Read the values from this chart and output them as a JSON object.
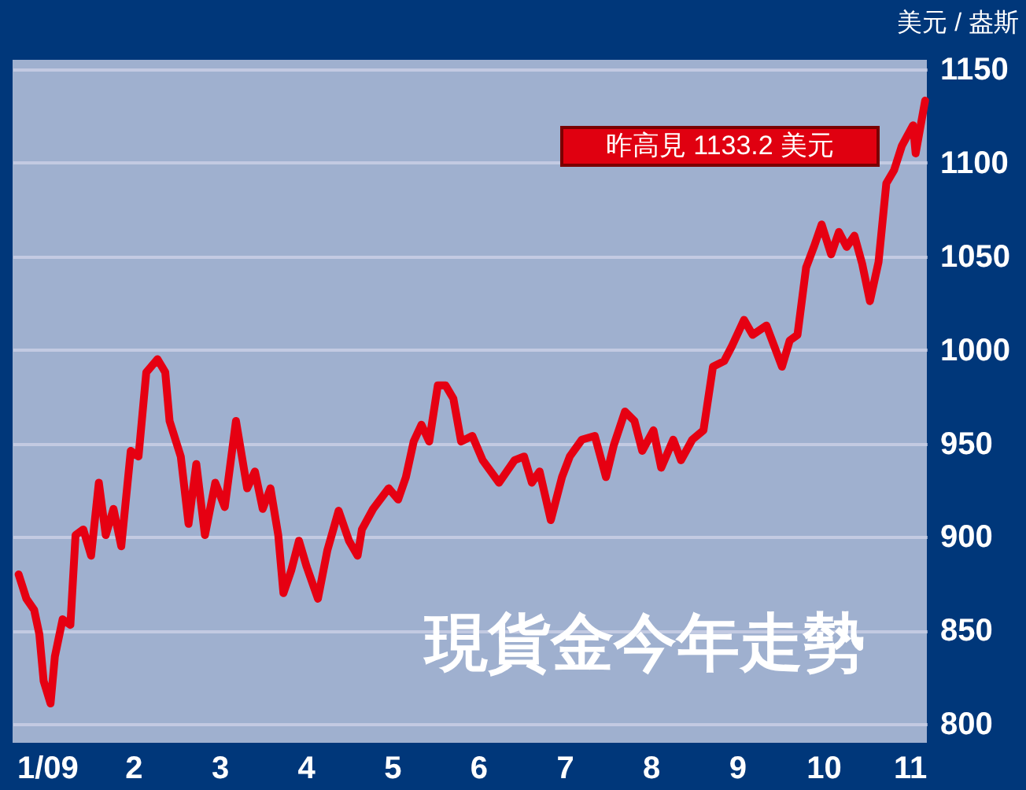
{
  "chart_data": {
    "type": "line",
    "title": "現貨金今年走勢",
    "ylabel": "美元 / 盎斯",
    "annotations": [
      "昨高見 1133.2 美元"
    ],
    "x": [
      0.67,
      0.76,
      0.85,
      0.91,
      0.96,
      1.04,
      1.09,
      1.18,
      1.27,
      1.33,
      1.42,
      1.51,
      1.6,
      1.68,
      1.77,
      1.86,
      1.97,
      2.06,
      2.15,
      2.28,
      2.37,
      2.42,
      2.55,
      2.64,
      2.73,
      2.83,
      2.95,
      3.06,
      3.19,
      3.32,
      3.41,
      3.5,
      3.59,
      3.68,
      3.74,
      3.83,
      3.92,
      4.01,
      4.14,
      4.25,
      4.38,
      4.5,
      4.6,
      4.65,
      4.78,
      4.96,
      5.07,
      5.16,
      5.25,
      5.34,
      5.43,
      5.53,
      5.62,
      5.71,
      5.8,
      5.93,
      6.05,
      6.24,
      6.42,
      6.53,
      6.62,
      6.71,
      6.84,
      6.97,
      7.06,
      7.2,
      7.35,
      7.48,
      7.57,
      7.7,
      7.81,
      7.9,
      8.03,
      8.12,
      8.26,
      8.35,
      8.48,
      8.61,
      8.72,
      8.85,
      8.94,
      9.08,
      9.18,
      9.34,
      9.43,
      9.52,
      9.61,
      9.7,
      9.8,
      9.89,
      9.98,
      10.09,
      10.18,
      10.27,
      10.36,
      10.45,
      10.54,
      10.64,
      10.73,
      10.82,
      10.91,
      11.04,
      11.07,
      11.18
    ],
    "series": [
      {
        "color": "#e60012",
        "values": [
          880,
          867,
          861,
          848,
          823,
          811,
          836,
          856,
          853,
          901,
          904,
          890,
          929,
          901,
          915,
          895,
          946,
          943,
          988,
          995,
          988,
          962,
          943,
          907,
          939,
          901,
          929,
          916,
          962,
          926,
          935,
          915,
          926,
          901,
          870,
          882,
          898,
          884,
          867,
          893,
          914,
          898,
          890,
          904,
          915,
          926,
          920,
          932,
          951,
          960,
          951,
          981,
          981,
          974,
          951,
          954,
          941,
          929,
          941,
          943,
          929,
          935,
          909,
          932,
          943,
          952,
          954,
          932,
          949,
          967,
          962,
          946,
          957,
          937,
          952,
          941,
          952,
          957,
          991,
          994,
          1002,
          1016,
          1008,
          1013,
          1002,
          991,
          1005,
          1008,
          1044,
          1055,
          1067,
          1051,
          1063,
          1055,
          1061,
          1046,
          1026,
          1047,
          1089,
          1096,
          1109,
          1120,
          1105,
          1133.2
        ]
      }
    ],
    "xlim": [
      0.6,
      11.2
    ],
    "xticks": [
      {
        "value": 1,
        "label": "1/09"
      },
      2,
      3,
      4,
      5,
      6,
      7,
      8,
      9,
      10,
      11
    ],
    "ylim": [
      790,
      1155
    ],
    "yticks": [
      800,
      850,
      900,
      950,
      1000,
      1050,
      1100,
      1150
    ],
    "grid": "y",
    "marker": "none",
    "line_style": "solid"
  }
}
